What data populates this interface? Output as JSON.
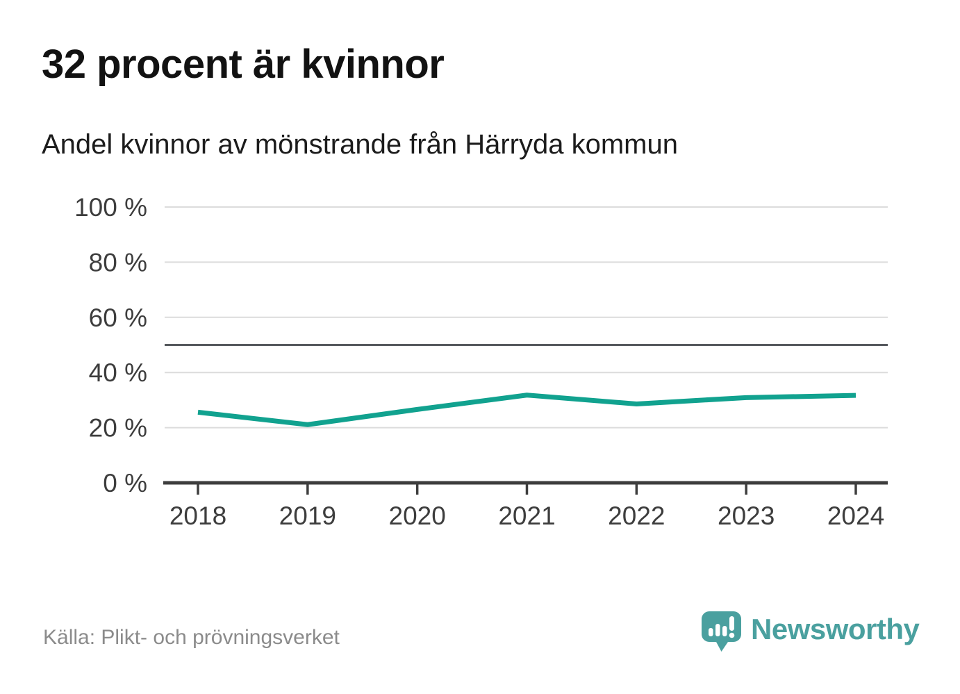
{
  "header": {
    "title": "32 procent är kvinnor",
    "subtitle": "Andel kvinnor av mönstrande från Härryda kommun"
  },
  "footer": {
    "source": "Källa: Plikt- och prövningsverket",
    "brand": "Newsworthy",
    "brand_color": "#4aa09f"
  },
  "chart_data": {
    "type": "line",
    "title": "32 procent är kvinnor",
    "subtitle": "Andel kvinnor av mönstrande från Härryda kommun",
    "categories": [
      "2018",
      "2019",
      "2020",
      "2021",
      "2022",
      "2023",
      "2024"
    ],
    "series": [
      {
        "name": "Andel kvinnor av mönstrande",
        "values": [
          25.6,
          21.1,
          26.6,
          31.8,
          28.6,
          30.9,
          31.7
        ]
      }
    ],
    "xlabel": "",
    "ylabel": "",
    "ylim": [
      0,
      100
    ],
    "yticks": [
      0,
      20,
      40,
      60,
      80,
      100
    ],
    "ytick_suffix": " %",
    "reference_line": 50,
    "grid": true,
    "legend_position": "none",
    "colors": {
      "line": "#11a28f",
      "grid": "#dcdcdc",
      "reference": "#56595e",
      "axis": "#3d3d3d",
      "tick_label": "#3d3d3d"
    }
  }
}
